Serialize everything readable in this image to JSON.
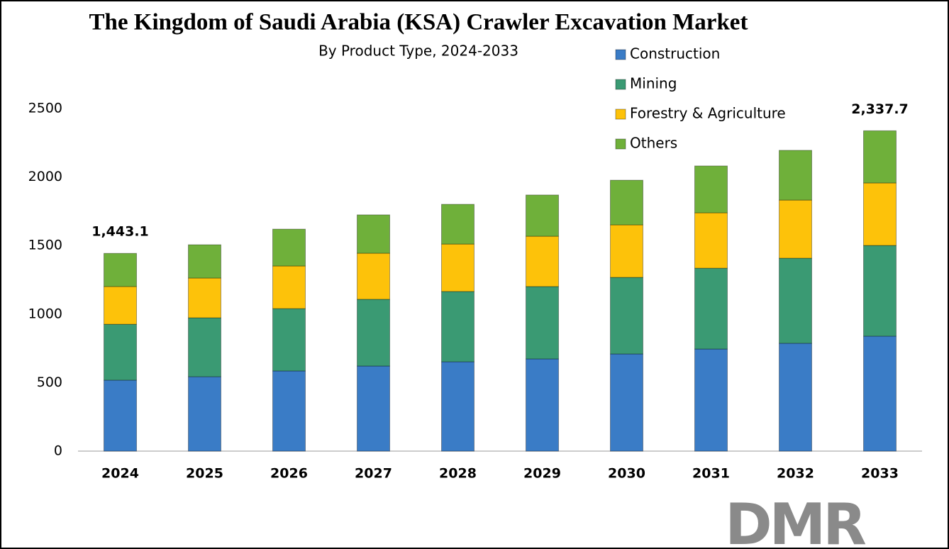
{
  "chart_data": {
    "type": "stacked_bar",
    "title": "The Kingdom of Saudi Arabia (KSA) Crawler Excavation Market",
    "subtitle": "By Product Type, 2024-2033",
    "categories": [
      "2024",
      "2025",
      "2026",
      "2027",
      "2028",
      "2029",
      "2030",
      "2031",
      "2032",
      "2033"
    ],
    "series": [
      {
        "name": "Construction",
        "color": "#3a7cc6",
        "values": [
          518,
          543,
          585,
          621,
          652,
          673,
          709,
          745,
          787,
          839
        ]
      },
      {
        "name": "Mining",
        "color": "#3a9a73",
        "values": [
          408,
          430,
          455,
          487,
          513,
          528,
          559,
          590,
          621,
          662
        ]
      },
      {
        "name": "Forestry & Agriculture",
        "color": "#fdc20a",
        "values": [
          275,
          290,
          311,
          336,
          346,
          367,
          383,
          404,
          424,
          456
        ]
      },
      {
        "name": "Others",
        "color": "#6fb03a",
        "values": [
          242.1,
          243,
          269,
          280,
          290,
          301,
          326,
          342,
          363,
          380.7
        ]
      }
    ],
    "ylim": [
      0,
      2500
    ],
    "yticks": [
      0,
      500,
      1000,
      1500,
      2000,
      2500
    ],
    "grid": false,
    "legend": "top-right",
    "annotations": [
      {
        "x": "2024",
        "value": 1443.1,
        "text": "1,443.1"
      },
      {
        "x": "2033",
        "value": 2337.7,
        "text": "2,337.7"
      }
    ],
    "logo": "DMR"
  }
}
